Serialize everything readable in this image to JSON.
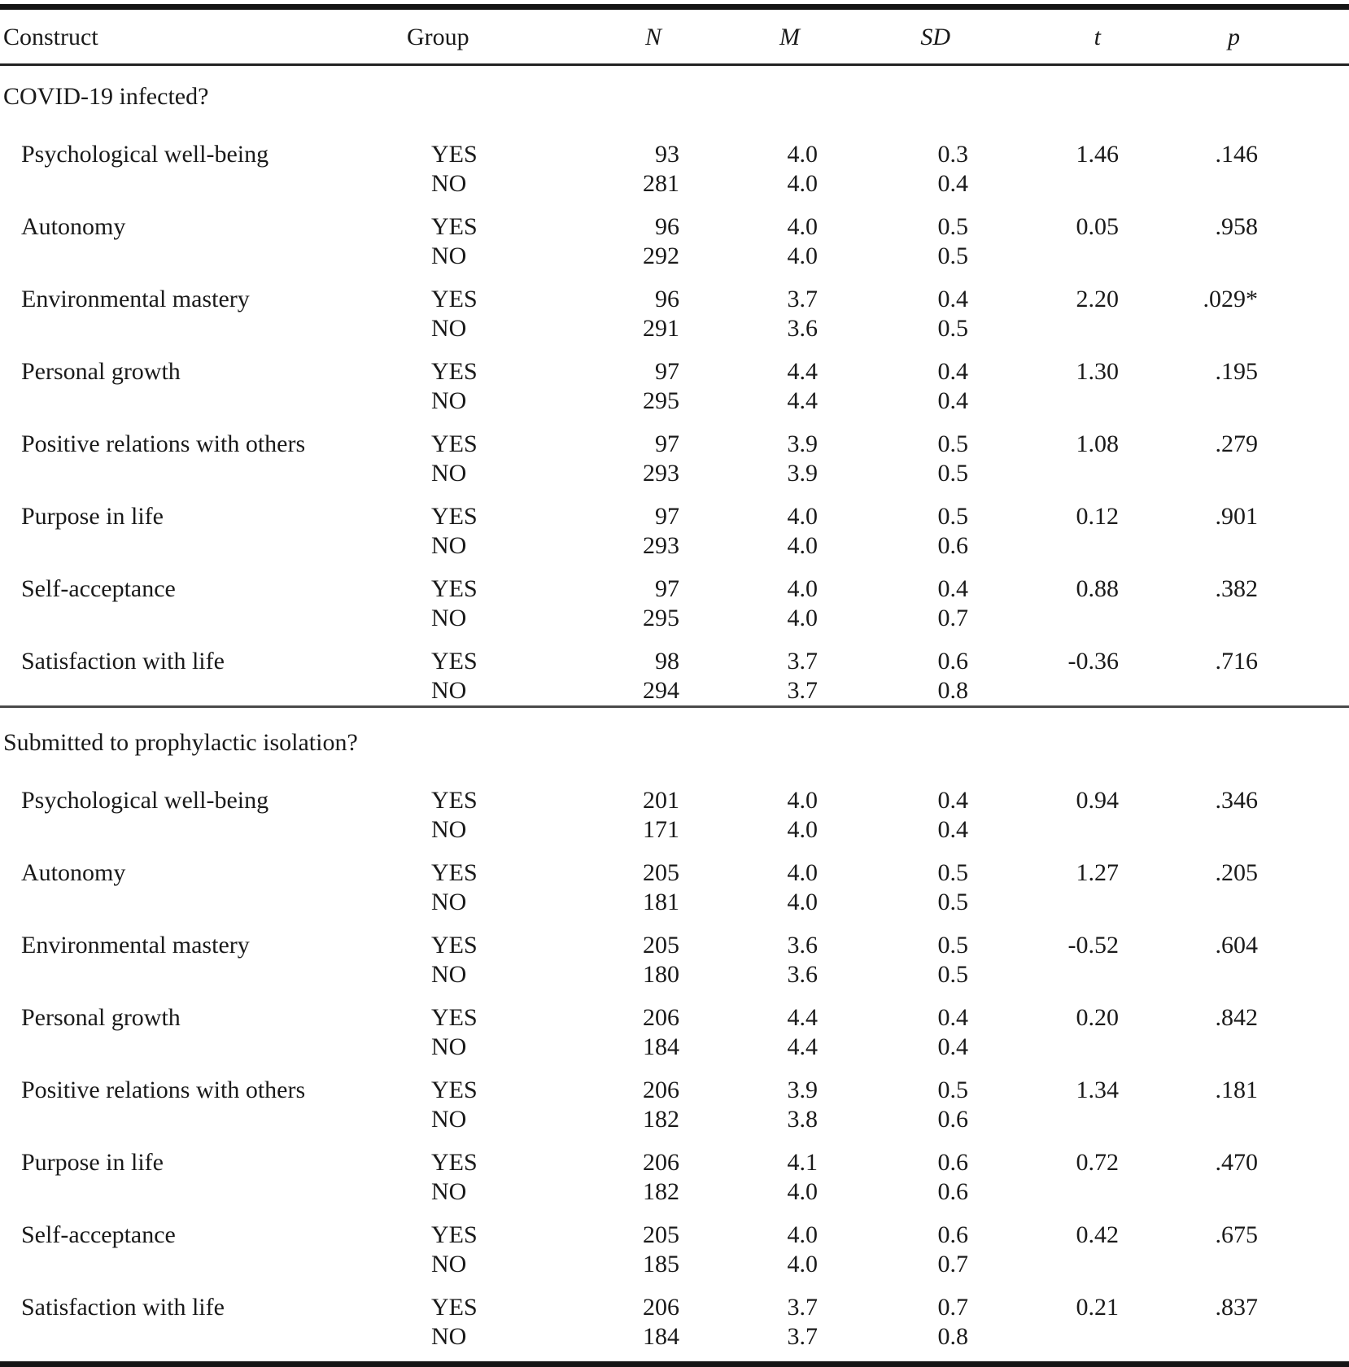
{
  "page": {
    "background": "#ffffff",
    "text_color": "#1a1a1a",
    "rule_color": "#151515"
  },
  "table": {
    "columns": {
      "construct": "Construct",
      "group": "Group",
      "n": "N",
      "m": "M",
      "sd": "SD",
      "t": "t",
      "p": "p"
    },
    "sections": [
      {
        "label": "COVID-19 infected?",
        "rows": [
          {
            "construct": "Psychological well-being",
            "groups": [
              {
                "group": "YES",
                "n": "93",
                "m": "4.0",
                "sd": "0.3",
                "t": "1.46",
                "p": ".146"
              },
              {
                "group": "NO",
                "n": "281",
                "m": "4.0",
                "sd": "0.4",
                "t": "",
                "p": ""
              }
            ]
          },
          {
            "construct": "Autonomy",
            "groups": [
              {
                "group": "YES",
                "n": "96",
                "m": "4.0",
                "sd": "0.5",
                "t": "0.05",
                "p": ".958"
              },
              {
                "group": "NO",
                "n": "292",
                "m": "4.0",
                "sd": "0.5",
                "t": "",
                "p": ""
              }
            ]
          },
          {
            "construct": "Environmental mastery",
            "groups": [
              {
                "group": "YES",
                "n": "96",
                "m": "3.7",
                "sd": "0.4",
                "t": "2.20",
                "p": ".029*"
              },
              {
                "group": "NO",
                "n": "291",
                "m": "3.6",
                "sd": "0.5",
                "t": "",
                "p": ""
              }
            ]
          },
          {
            "construct": "Personal growth",
            "groups": [
              {
                "group": "YES",
                "n": "97",
                "m": "4.4",
                "sd": "0.4",
                "t": "1.30",
                "p": ".195"
              },
              {
                "group": "NO",
                "n": "295",
                "m": "4.4",
                "sd": "0.4",
                "t": "",
                "p": ""
              }
            ]
          },
          {
            "construct": "Positive relations with others",
            "groups": [
              {
                "group": "YES",
                "n": "97",
                "m": "3.9",
                "sd": "0.5",
                "t": "1.08",
                "p": ".279"
              },
              {
                "group": "NO",
                "n": "293",
                "m": "3.9",
                "sd": "0.5",
                "t": "",
                "p": ""
              }
            ]
          },
          {
            "construct": "Purpose in life",
            "groups": [
              {
                "group": "YES",
                "n": "97",
                "m": "4.0",
                "sd": "0.5",
                "t": "0.12",
                "p": ".901"
              },
              {
                "group": "NO",
                "n": "293",
                "m": "4.0",
                "sd": "0.6",
                "t": "",
                "p": ""
              }
            ]
          },
          {
            "construct": "Self-acceptance",
            "groups": [
              {
                "group": "YES",
                "n": "97",
                "m": "4.0",
                "sd": "0.4",
                "t": "0.88",
                "p": ".382"
              },
              {
                "group": "NO",
                "n": "295",
                "m": "4.0",
                "sd": "0.7",
                "t": "",
                "p": ""
              }
            ]
          },
          {
            "construct": "Satisfaction with life",
            "groups": [
              {
                "group": "YES",
                "n": "98",
                "m": "3.7",
                "sd": "0.6",
                "t": "-0.36",
                "p": ".716"
              },
              {
                "group": "NO",
                "n": "294",
                "m": "3.7",
                "sd": "0.8",
                "t": "",
                "p": ""
              }
            ]
          }
        ]
      },
      {
        "label": "Submitted to prophylactic isolation?",
        "rows": [
          {
            "construct": "Psychological well-being",
            "groups": [
              {
                "group": "YES",
                "n": "201",
                "m": "4.0",
                "sd": "0.4",
                "t": "0.94",
                "p": ".346"
              },
              {
                "group": "NO",
                "n": "171",
                "m": "4.0",
                "sd": "0.4",
                "t": "",
                "p": ""
              }
            ]
          },
          {
            "construct": "Autonomy",
            "groups": [
              {
                "group": "YES",
                "n": "205",
                "m": "4.0",
                "sd": "0.5",
                "t": "1.27",
                "p": ".205"
              },
              {
                "group": "NO",
                "n": "181",
                "m": "4.0",
                "sd": "0.5",
                "t": "",
                "p": ""
              }
            ]
          },
          {
            "construct": "Environmental mastery",
            "groups": [
              {
                "group": "YES",
                "n": "205",
                "m": "3.6",
                "sd": "0.5",
                "t": "-0.52",
                "p": ".604"
              },
              {
                "group": "NO",
                "n": "180",
                "m": "3.6",
                "sd": "0.5",
                "t": "",
                "p": ""
              }
            ]
          },
          {
            "construct": "Personal growth",
            "groups": [
              {
                "group": "YES",
                "n": "206",
                "m": "4.4",
                "sd": "0.4",
                "t": "0.20",
                "p": ".842"
              },
              {
                "group": "NO",
                "n": "184",
                "m": "4.4",
                "sd": "0.4",
                "t": "",
                "p": ""
              }
            ]
          },
          {
            "construct": "Positive relations with others",
            "groups": [
              {
                "group": "YES",
                "n": "206",
                "m": "3.9",
                "sd": "0.5",
                "t": "1.34",
                "p": ".181"
              },
              {
                "group": "NO",
                "n": "182",
                "m": "3.8",
                "sd": "0.6",
                "t": "",
                "p": ""
              }
            ]
          },
          {
            "construct": "Purpose in life",
            "groups": [
              {
                "group": "YES",
                "n": "206",
                "m": "4.1",
                "sd": "0.6",
                "t": "0.72",
                "p": ".470"
              },
              {
                "group": "NO",
                "n": "182",
                "m": "4.0",
                "sd": "0.6",
                "t": "",
                "p": ""
              }
            ]
          },
          {
            "construct": "Self-acceptance",
            "groups": [
              {
                "group": "YES",
                "n": "205",
                "m": "4.0",
                "sd": "0.6",
                "t": "0.42",
                "p": ".675"
              },
              {
                "group": "NO",
                "n": "185",
                "m": "4.0",
                "sd": "0.7",
                "t": "",
                "p": ""
              }
            ]
          },
          {
            "construct": "Satisfaction with life",
            "groups": [
              {
                "group": "YES",
                "n": "206",
                "m": "3.7",
                "sd": "0.7",
                "t": "0.21",
                "p": ".837"
              },
              {
                "group": "NO",
                "n": "184",
                "m": "3.7",
                "sd": "0.8",
                "t": "",
                "p": ""
              }
            ]
          }
        ]
      }
    ]
  }
}
